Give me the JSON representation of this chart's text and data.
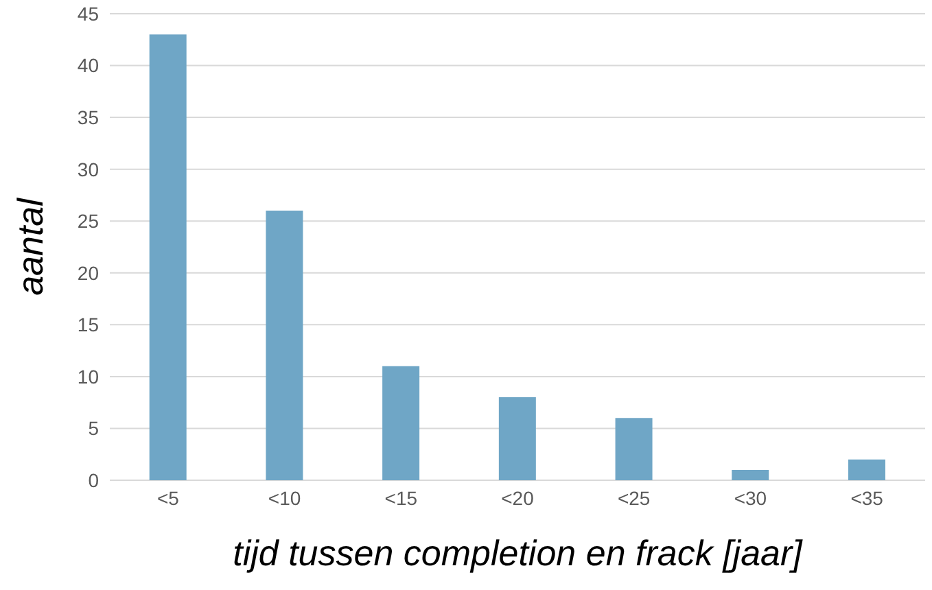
{
  "chart_data": {
    "type": "bar",
    "xlabel": "tijd tussen completion en frack [jaar]",
    "ylabel": "aantal",
    "categories": [
      "<5",
      "<10",
      "<15",
      "<20",
      "<25",
      "<30",
      "<35"
    ],
    "values": [
      43,
      26,
      11,
      8,
      6,
      1,
      2
    ],
    "color": "#6fa6c6",
    "ylim": [
      0,
      45
    ],
    "yticks": [
      0,
      5,
      10,
      15,
      20,
      25,
      30,
      35,
      40,
      45
    ],
    "grid": "y",
    "legend": false
  }
}
